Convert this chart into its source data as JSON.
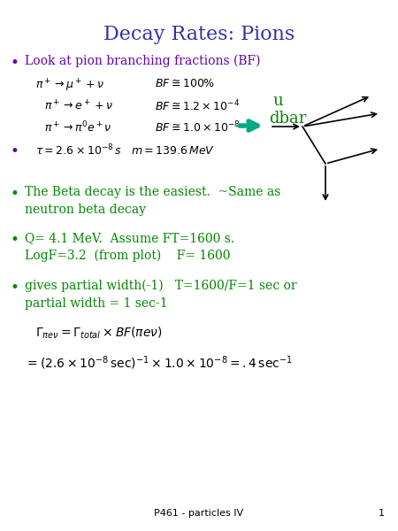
{
  "title": "Decay Rates: Pions",
  "title_color": "#3333AA",
  "title_fontsize": 16,
  "bg_color": "#FFFFFF",
  "bullet_color": "#6600AA",
  "green_color": "#008800",
  "black_color": "#000000",
  "teal_color": "#00AA88",
  "footer_text": "P461 - particles IV",
  "footer_num": "1",
  "eq_fontsize": 9,
  "bullet_fontsize": 10,
  "body_fontsize": 10
}
